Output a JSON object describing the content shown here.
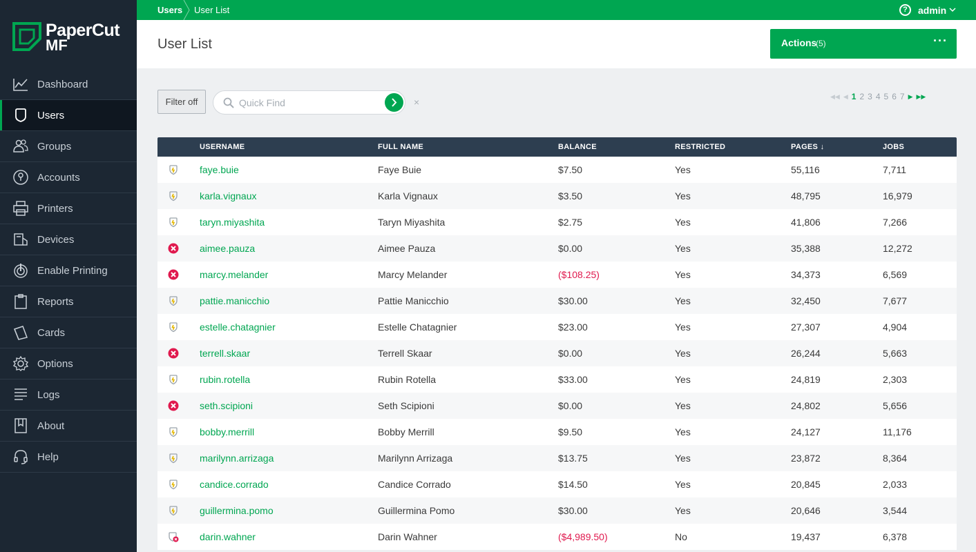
{
  "brand": {
    "line1": "PaperCut",
    "line2": "MF"
  },
  "nav": [
    {
      "label": "Dashboard",
      "icon": "dashboard-icon",
      "active": false
    },
    {
      "label": "Users",
      "icon": "users-icon",
      "active": true
    },
    {
      "label": "Groups",
      "icon": "groups-icon",
      "active": false
    },
    {
      "label": "Accounts",
      "icon": "accounts-icon",
      "active": false
    },
    {
      "label": "Printers",
      "icon": "printer-icon",
      "active": false
    },
    {
      "label": "Devices",
      "icon": "devices-icon",
      "active": false
    },
    {
      "label": "Enable Printing",
      "icon": "enable-printing-icon",
      "active": false
    },
    {
      "label": "Reports",
      "icon": "reports-icon",
      "active": false
    },
    {
      "label": "Cards",
      "icon": "cards-icon",
      "active": false
    },
    {
      "label": "Options",
      "icon": "options-icon",
      "active": false
    },
    {
      "label": "Logs",
      "icon": "logs-icon",
      "active": false
    },
    {
      "label": "About",
      "icon": "about-icon",
      "active": false
    },
    {
      "label": "Help",
      "icon": "help-headset-icon",
      "active": false
    }
  ],
  "topbar": {
    "crumb_root": "Users",
    "crumb_current": "User List",
    "user": "admin"
  },
  "header": {
    "title": "User List",
    "actions_label": "Actions",
    "actions_count": "(5)",
    "actions_more": "···"
  },
  "toolbar": {
    "filter_label": "Filter off",
    "search_placeholder": "Quick Find",
    "clear": "×",
    "pages": [
      "1",
      "2",
      "3",
      "4",
      "5",
      "6",
      "7"
    ],
    "current_page": "1"
  },
  "table": {
    "columns": {
      "username": "USERNAME",
      "fullname": "FULL NAME",
      "balance": "BALANCE",
      "restricted": "RESTRICTED",
      "pages": "PAGES",
      "jobs": "JOBS"
    },
    "sort_indicator": "↓",
    "rows": [
      {
        "status": "shield",
        "username": "faye.buie",
        "fullname": "Faye Buie",
        "balance": "$7.50",
        "negative": false,
        "restricted": "Yes",
        "pages": "55,116",
        "jobs": "7,711"
      },
      {
        "status": "shield",
        "username": "karla.vignaux",
        "fullname": "Karla Vignaux",
        "balance": "$3.50",
        "negative": false,
        "restricted": "Yes",
        "pages": "48,795",
        "jobs": "16,979"
      },
      {
        "status": "shield",
        "username": "taryn.miyashita",
        "fullname": "Taryn Miyashita",
        "balance": "$2.75",
        "negative": false,
        "restricted": "Yes",
        "pages": "41,806",
        "jobs": "7,266"
      },
      {
        "status": "error",
        "username": "aimee.pauza",
        "fullname": "Aimee Pauza",
        "balance": "$0.00",
        "negative": false,
        "restricted": "Yes",
        "pages": "35,388",
        "jobs": "12,272"
      },
      {
        "status": "error",
        "username": "marcy.melander",
        "fullname": "Marcy Melander",
        "balance": "($108.25)",
        "negative": true,
        "restricted": "Yes",
        "pages": "34,373",
        "jobs": "6,569"
      },
      {
        "status": "shield",
        "username": "pattie.manicchio",
        "fullname": "Pattie Manicchio",
        "balance": "$30.00",
        "negative": false,
        "restricted": "Yes",
        "pages": "32,450",
        "jobs": "7,677"
      },
      {
        "status": "shield",
        "username": "estelle.chatagnier",
        "fullname": "Estelle Chatagnier",
        "balance": "$23.00",
        "negative": false,
        "restricted": "Yes",
        "pages": "27,307",
        "jobs": "4,904"
      },
      {
        "status": "error",
        "username": "terrell.skaar",
        "fullname": "Terrell Skaar",
        "balance": "$0.00",
        "negative": false,
        "restricted": "Yes",
        "pages": "26,244",
        "jobs": "5,663"
      },
      {
        "status": "shield",
        "username": "rubin.rotella",
        "fullname": "Rubin Rotella",
        "balance": "$33.00",
        "negative": false,
        "restricted": "Yes",
        "pages": "24,819",
        "jobs": "2,303"
      },
      {
        "status": "error",
        "username": "seth.scipioni",
        "fullname": "Seth Scipioni",
        "balance": "$0.00",
        "negative": false,
        "restricted": "Yes",
        "pages": "24,802",
        "jobs": "5,656"
      },
      {
        "status": "shield",
        "username": "bobby.merrill",
        "fullname": "Bobby Merrill",
        "balance": "$9.50",
        "negative": false,
        "restricted": "Yes",
        "pages": "24,127",
        "jobs": "11,176"
      },
      {
        "status": "shield",
        "username": "marilynn.arrizaga",
        "fullname": "Marilynn Arrizaga",
        "balance": "$13.75",
        "negative": false,
        "restricted": "Yes",
        "pages": "23,872",
        "jobs": "8,364"
      },
      {
        "status": "shield",
        "username": "candice.corrado",
        "fullname": "Candice Corrado",
        "balance": "$14.50",
        "negative": false,
        "restricted": "Yes",
        "pages": "20,845",
        "jobs": "2,033"
      },
      {
        "status": "shield",
        "username": "guillermina.pomo",
        "fullname": "Guillermina Pomo",
        "balance": "$30.00",
        "negative": false,
        "restricted": "Yes",
        "pages": "20,646",
        "jobs": "3,544"
      },
      {
        "status": "shield-error",
        "username": "darin.wahner",
        "fullname": "Darin Wahner",
        "balance": "($4,989.50)",
        "negative": true,
        "restricted": "No",
        "pages": "19,437",
        "jobs": "6,378"
      }
    ]
  },
  "colors": {
    "brand_green": "#00a651",
    "sidebar": "#1c2733",
    "table_header": "#2d3e50",
    "negative": "#e0194e",
    "warning_shield": "#e5b800"
  }
}
